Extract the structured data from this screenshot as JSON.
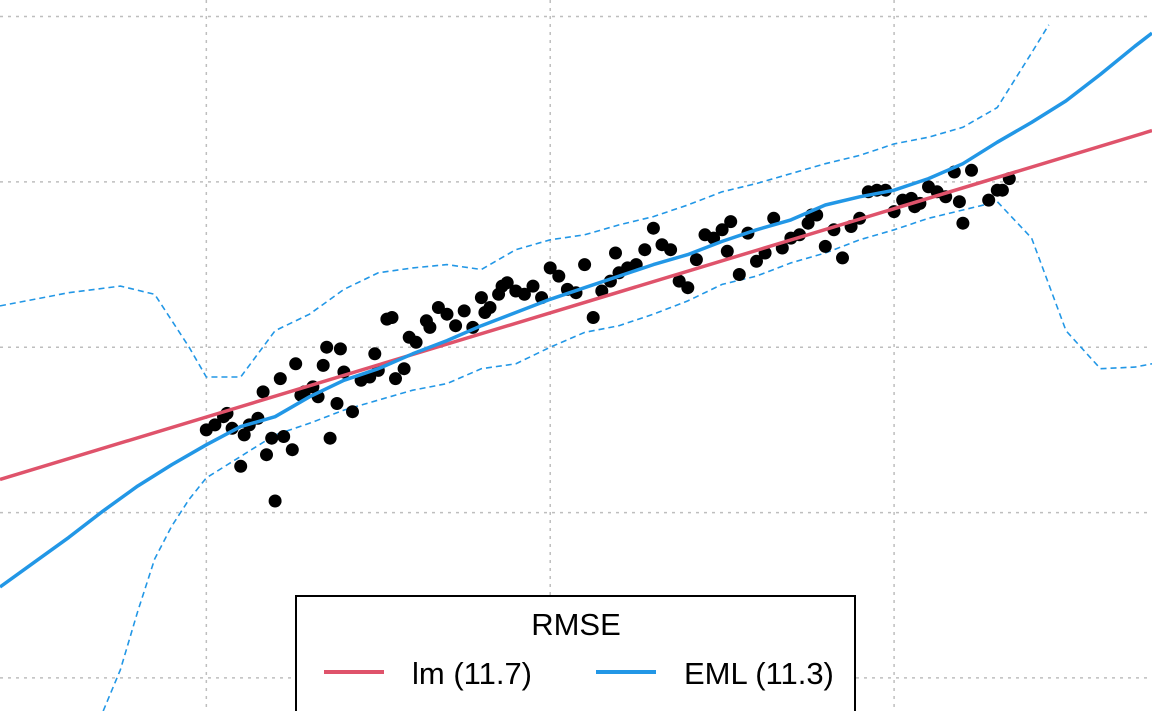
{
  "chart_data": {
    "type": "scatter",
    "title": "",
    "xlabel": "",
    "ylabel": "",
    "grid": true,
    "legend_position": "bottom-center",
    "colors": {
      "points": "#000000",
      "lm": "#DF536B",
      "eml": "#2297E6",
      "grid": "#BEBEBE"
    },
    "points": [
      [
        2.0,
        2.0
      ],
      [
        2.05,
        2.03
      ],
      [
        2.1,
        2.08
      ],
      [
        2.12,
        2.1
      ],
      [
        2.15,
        2.01
      ],
      [
        2.2,
        1.78
      ],
      [
        2.22,
        1.97
      ],
      [
        2.25,
        2.03
      ],
      [
        2.3,
        2.07
      ],
      [
        2.33,
        2.23
      ],
      [
        2.35,
        1.85
      ],
      [
        2.38,
        1.95
      ],
      [
        2.4,
        1.57
      ],
      [
        2.43,
        2.31
      ],
      [
        2.45,
        1.96
      ],
      [
        2.5,
        1.88
      ],
      [
        2.52,
        2.4
      ],
      [
        2.55,
        2.21
      ],
      [
        2.57,
        2.23
      ],
      [
        2.62,
        2.26
      ],
      [
        2.65,
        2.2
      ],
      [
        2.68,
        2.39
      ],
      [
        2.7,
        2.5
      ],
      [
        2.72,
        1.95
      ],
      [
        2.76,
        2.16
      ],
      [
        2.78,
        2.49
      ],
      [
        2.8,
        2.35
      ],
      [
        2.85,
        2.11
      ],
      [
        2.9,
        2.3
      ],
      [
        2.95,
        2.32
      ],
      [
        2.98,
        2.46
      ],
      [
        3.0,
        2.36
      ],
      [
        3.05,
        2.67
      ],
      [
        3.08,
        2.68
      ],
      [
        3.1,
        2.31
      ],
      [
        3.15,
        2.37
      ],
      [
        3.18,
        2.56
      ],
      [
        3.22,
        2.53
      ],
      [
        3.28,
        2.66
      ],
      [
        3.3,
        2.62
      ],
      [
        3.35,
        2.74
      ],
      [
        3.4,
        2.7
      ],
      [
        3.45,
        2.63
      ],
      [
        3.5,
        2.72
      ],
      [
        3.55,
        2.62
      ],
      [
        3.6,
        2.8
      ],
      [
        3.62,
        2.71
      ],
      [
        3.65,
        2.74
      ],
      [
        3.7,
        2.82
      ],
      [
        3.72,
        2.87
      ],
      [
        3.75,
        2.89
      ],
      [
        3.8,
        2.84
      ],
      [
        3.85,
        2.82
      ],
      [
        3.9,
        2.87
      ],
      [
        3.95,
        2.8
      ],
      [
        4.0,
        2.98
      ],
      [
        4.05,
        2.93
      ],
      [
        4.1,
        2.85
      ],
      [
        4.15,
        2.83
      ],
      [
        4.2,
        3.0
      ],
      [
        4.25,
        2.68
      ],
      [
        4.3,
        2.84
      ],
      [
        4.35,
        2.9
      ],
      [
        4.38,
        3.07
      ],
      [
        4.4,
        2.95
      ],
      [
        4.45,
        2.98
      ],
      [
        4.5,
        3.0
      ],
      [
        4.55,
        3.09
      ],
      [
        4.6,
        3.22
      ],
      [
        4.65,
        3.12
      ],
      [
        4.7,
        3.09
      ],
      [
        4.75,
        2.9
      ],
      [
        4.8,
        2.86
      ],
      [
        4.85,
        3.03
      ],
      [
        4.9,
        3.18
      ],
      [
        4.95,
        3.16
      ],
      [
        5.0,
        3.21
      ],
      [
        5.03,
        3.08
      ],
      [
        5.05,
        3.26
      ],
      [
        5.1,
        2.94
      ],
      [
        5.15,
        3.19
      ],
      [
        5.2,
        3.02
      ],
      [
        5.25,
        3.07
      ],
      [
        5.3,
        3.28
      ],
      [
        5.35,
        3.1
      ],
      [
        5.4,
        3.16
      ],
      [
        5.45,
        3.18
      ],
      [
        5.5,
        3.25
      ],
      [
        5.52,
        3.3
      ],
      [
        5.55,
        3.3
      ],
      [
        5.6,
        3.11
      ],
      [
        5.65,
        3.21
      ],
      [
        5.7,
        3.04
      ],
      [
        5.75,
        3.23
      ],
      [
        5.8,
        3.28
      ],
      [
        5.85,
        3.44
      ],
      [
        5.9,
        3.45
      ],
      [
        5.95,
        3.45
      ],
      [
        6.0,
        3.32
      ],
      [
        6.05,
        3.39
      ],
      [
        6.1,
        3.4
      ],
      [
        6.12,
        3.35
      ],
      [
        6.15,
        3.37
      ],
      [
        6.2,
        3.47
      ],
      [
        6.25,
        3.44
      ],
      [
        6.3,
        3.41
      ],
      [
        6.35,
        3.56
      ],
      [
        6.38,
        3.38
      ],
      [
        6.4,
        3.25
      ],
      [
        6.45,
        3.57
      ],
      [
        6.55,
        3.39
      ],
      [
        6.6,
        3.45
      ],
      [
        6.63,
        3.45
      ],
      [
        6.67,
        3.52
      ]
    ],
    "lm_line": [
      [
        0.8,
        1.7
      ],
      [
        7.5,
        3.81
      ]
    ],
    "eml_curve": [
      [
        0.8,
        1.05
      ],
      [
        1.0,
        1.2
      ],
      [
        1.2,
        1.35
      ],
      [
        1.4,
        1.51
      ],
      [
        1.6,
        1.66
      ],
      [
        1.8,
        1.79
      ],
      [
        2.0,
        1.91
      ],
      [
        2.2,
        2.02
      ],
      [
        2.4,
        2.08
      ],
      [
        2.6,
        2.2
      ],
      [
        2.8,
        2.3
      ],
      [
        3.0,
        2.37
      ],
      [
        3.2,
        2.46
      ],
      [
        3.4,
        2.54
      ],
      [
        3.6,
        2.63
      ],
      [
        3.8,
        2.71
      ],
      [
        4.0,
        2.79
      ],
      [
        4.2,
        2.86
      ],
      [
        4.4,
        2.93
      ],
      [
        4.6,
        3.0
      ],
      [
        4.8,
        3.06
      ],
      [
        5.0,
        3.14
      ],
      [
        5.2,
        3.21
      ],
      [
        5.4,
        3.27
      ],
      [
        5.6,
        3.36
      ],
      [
        5.8,
        3.41
      ],
      [
        6.0,
        3.45
      ],
      [
        6.2,
        3.52
      ],
      [
        6.4,
        3.61
      ],
      [
        6.6,
        3.74
      ],
      [
        6.8,
        3.86
      ],
      [
        7.0,
        3.99
      ],
      [
        7.2,
        4.15
      ],
      [
        7.4,
        4.32
      ],
      [
        7.5,
        4.4
      ]
    ],
    "eml_band_upper": [
      [
        0.8,
        2.75
      ],
      [
        1.2,
        2.83
      ],
      [
        1.5,
        2.87
      ],
      [
        1.7,
        2.82
      ],
      [
        1.9,
        2.5
      ],
      [
        2.0,
        2.32
      ],
      [
        2.2,
        2.32
      ],
      [
        2.4,
        2.6
      ],
      [
        2.6,
        2.7
      ],
      [
        2.8,
        2.85
      ],
      [
        3.0,
        2.95
      ],
      [
        3.2,
        2.98
      ],
      [
        3.4,
        3.0
      ],
      [
        3.6,
        2.97
      ],
      [
        3.8,
        3.09
      ],
      [
        4.0,
        3.15
      ],
      [
        4.2,
        3.18
      ],
      [
        4.4,
        3.24
      ],
      [
        4.6,
        3.29
      ],
      [
        4.8,
        3.36
      ],
      [
        5.0,
        3.44
      ],
      [
        5.2,
        3.49
      ],
      [
        5.4,
        3.55
      ],
      [
        5.6,
        3.61
      ],
      [
        5.8,
        3.66
      ],
      [
        6.0,
        3.73
      ],
      [
        6.2,
        3.77
      ],
      [
        6.4,
        3.83
      ],
      [
        6.6,
        3.95
      ],
      [
        6.8,
        4.28
      ],
      [
        6.9,
        4.45
      ]
    ],
    "eml_band_lower": [
      [
        1.4,
        0.3
      ],
      [
        1.5,
        0.55
      ],
      [
        1.6,
        0.9
      ],
      [
        1.7,
        1.22
      ],
      [
        1.8,
        1.42
      ],
      [
        1.9,
        1.58
      ],
      [
        2.0,
        1.71
      ],
      [
        2.2,
        1.84
      ],
      [
        2.4,
        1.97
      ],
      [
        2.6,
        2.04
      ],
      [
        2.8,
        2.12
      ],
      [
        3.0,
        2.18
      ],
      [
        3.2,
        2.24
      ],
      [
        3.4,
        2.28
      ],
      [
        3.6,
        2.37
      ],
      [
        3.8,
        2.4
      ],
      [
        4.0,
        2.5
      ],
      [
        4.2,
        2.59
      ],
      [
        4.4,
        2.63
      ],
      [
        4.6,
        2.7
      ],
      [
        4.8,
        2.78
      ],
      [
        5.0,
        2.88
      ],
      [
        5.2,
        2.93
      ],
      [
        5.4,
        3.01
      ],
      [
        5.6,
        3.07
      ],
      [
        5.8,
        3.15
      ],
      [
        6.0,
        3.21
      ],
      [
        6.2,
        3.28
      ],
      [
        6.4,
        3.33
      ],
      [
        6.6,
        3.38
      ],
      [
        6.8,
        3.16
      ],
      [
        7.0,
        2.6
      ],
      [
        7.2,
        2.37
      ],
      [
        7.4,
        2.38
      ],
      [
        7.5,
        2.4
      ]
    ],
    "xlim": [
      0.8,
      7.5
    ],
    "ylim": [
      0.3,
      4.6
    ],
    "legend": {
      "title": "RMSE",
      "entries": [
        {
          "label": "lm (11.7)",
          "color": "#DF536B"
        },
        {
          "label": "EML (11.3)",
          "color": "#2297E6"
        }
      ]
    }
  }
}
